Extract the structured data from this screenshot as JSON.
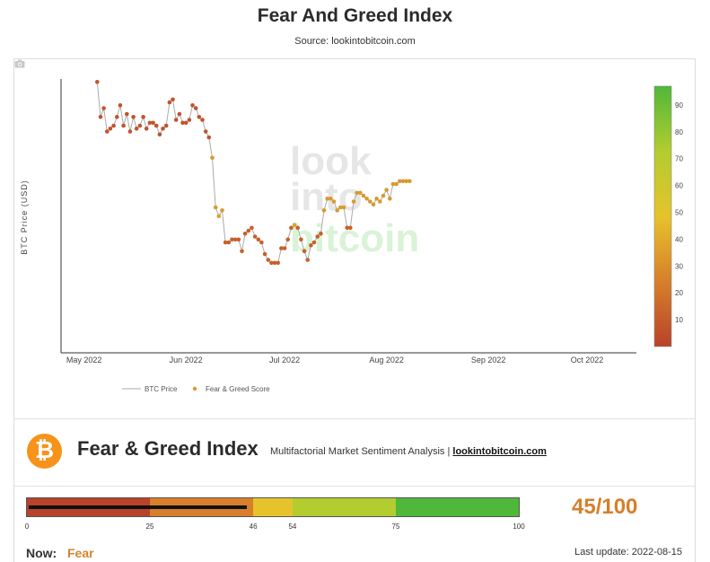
{
  "page": {
    "title": "Fear And Greed Index",
    "source": "Source: lookintobitcoin.com"
  },
  "colors": {
    "price_line": "#aaaaaa",
    "extreme_fear": "#b8432a",
    "fear": "#d77f2b",
    "neutral": "#e6c32b",
    "greed": "#b3cc30",
    "extreme_greed": "#4fb83a"
  },
  "chart_data": {
    "type": "scatter",
    "title": "",
    "xlabel": "",
    "ylabel": "BTC Price (USD)",
    "x_ticks": [
      "May 2022",
      "Jun 2022",
      "Jul 2022",
      "Aug 2022",
      "Sep 2022",
      "Oct 2022"
    ],
    "x_range": [
      "2022-04-24",
      "2022-10-16"
    ],
    "legend": {
      "placement": "bottom",
      "entries": [
        "BTC Price",
        "Fear & Greed Score"
      ]
    },
    "watermark": "look into bitcoin",
    "series": [
      {
        "name": "Fear & Greed Score",
        "start_date": "2022-05-05",
        "values": [
          95,
          83,
          86,
          78,
          79,
          80,
          83,
          87,
          80,
          84,
          78,
          83,
          79,
          80,
          83,
          79,
          81,
          81,
          80,
          77,
          79,
          80,
          88,
          89,
          82,
          84,
          81,
          81,
          82,
          87,
          86,
          83,
          82,
          78,
          76,
          69,
          52,
          49,
          51,
          40,
          40,
          41,
          41,
          41,
          37,
          43,
          44,
          45,
          42,
          41,
          40,
          36,
          34,
          33,
          33,
          33,
          38,
          38,
          41,
          45,
          46,
          45,
          41,
          37,
          34,
          39,
          40,
          42,
          43,
          51,
          55,
          55,
          54,
          51,
          52,
          52,
          45,
          45,
          54,
          57,
          57,
          56,
          55,
          54,
          53,
          55,
          54,
          56,
          58,
          55,
          60,
          60,
          61,
          61,
          61,
          61
        ]
      }
    ],
    "colorscale": {
      "label": "Fear & Greed Score",
      "range": [
        0,
        100
      ],
      "ticks": [
        10,
        20,
        30,
        40,
        50,
        60,
        70,
        80,
        90
      ]
    }
  },
  "index_panel": {
    "logo": "bitcoin-logo",
    "heading": "Fear & Greed Index",
    "subtitle": "Multifactorial Market Sentiment Analysis |",
    "link": "lookintobitcoin.com",
    "score": 45,
    "score_text": "45/100",
    "zones": [
      {
        "from": 0,
        "to": 25
      },
      {
        "from": 25,
        "to": 46
      },
      {
        "from": 46,
        "to": 54
      },
      {
        "from": 54,
        "to": 75
      },
      {
        "from": 75,
        "to": 100
      }
    ],
    "tick_labels": [
      "0",
      "25",
      "46",
      "54",
      "75",
      "100"
    ],
    "now_label": "Now:",
    "now_value": "Fear",
    "last_update": "Last update: 2022-08-15"
  }
}
